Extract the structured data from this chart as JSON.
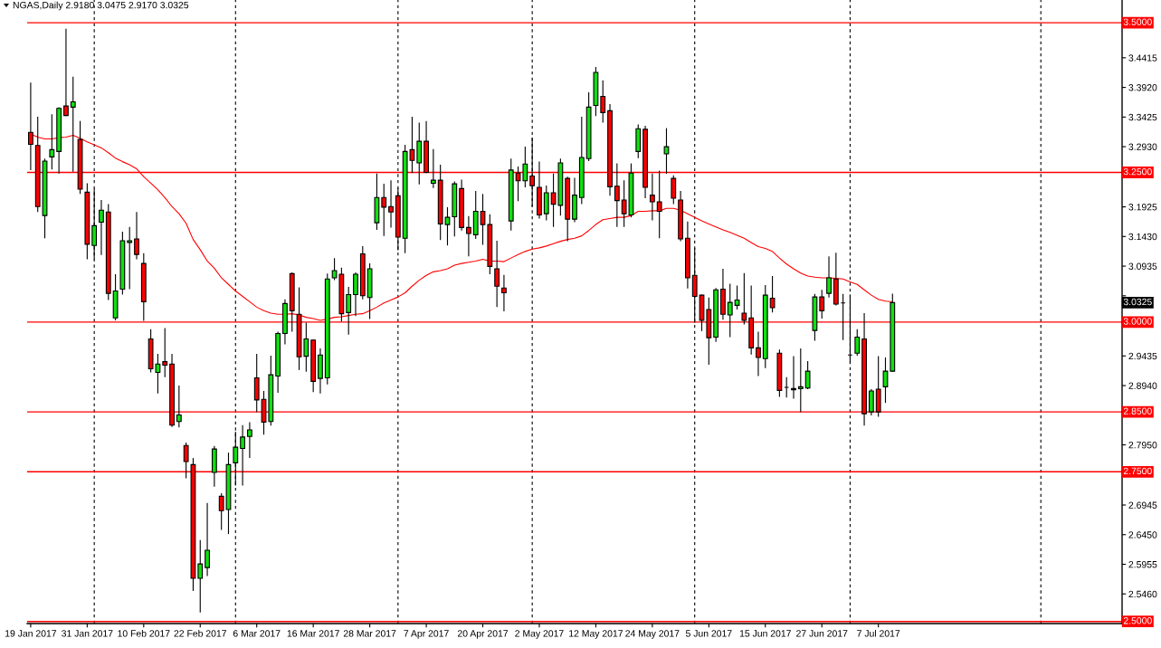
{
  "chart_data": {
    "type": "candlestick",
    "title": "NGAS,Daily 2.9180 3.0475 2.9170 3.0325",
    "categories": [
      "19 Jan 2017",
      null,
      null,
      null,
      null,
      null,
      null,
      null,
      "31 Jan 2017",
      null,
      null,
      null,
      null,
      null,
      null,
      null,
      "10 Feb 2017",
      null,
      null,
      null,
      null,
      null,
      null,
      null,
      "22 Feb 2017",
      null,
      null,
      null,
      null,
      null,
      null,
      null,
      "6 Mar 2017",
      null,
      null,
      null,
      null,
      null,
      null,
      null,
      "16 Mar 2017",
      null,
      null,
      null,
      null,
      null,
      null,
      null,
      "28 Mar 2017",
      null,
      null,
      null,
      null,
      null,
      null,
      null,
      "7 Apr 2017",
      null,
      null,
      null,
      null,
      null,
      null,
      null,
      "20 Apr 2017",
      null,
      null,
      null,
      null,
      null,
      null,
      null,
      "2 May 2017",
      null,
      null,
      null,
      null,
      null,
      null,
      null,
      "12 May 2017",
      null,
      null,
      null,
      null,
      null,
      null,
      null,
      "24 May 2017",
      null,
      null,
      null,
      null,
      null,
      null,
      null,
      "5 Jun 2017",
      null,
      null,
      null,
      null,
      null,
      null,
      null,
      "15 Jun 2017",
      null,
      null,
      null,
      null,
      null,
      null,
      null,
      "27 Jun 2017",
      null,
      null,
      null,
      null,
      null,
      null,
      null,
      "7 Jul 2017",
      null,
      null,
      null,
      null,
      null,
      null,
      null,
      null,
      null,
      null,
      null,
      null,
      null,
      null,
      null,
      null,
      null,
      null,
      null,
      null,
      null,
      null,
      null,
      null,
      null,
      null,
      null,
      null,
      null,
      null,
      null,
      null,
      null,
      null
    ],
    "ohlc": [
      [
        3.317,
        3.4,
        3.254,
        3.297
      ],
      [
        3.295,
        3.343,
        3.184,
        3.193
      ],
      [
        3.178,
        3.273,
        3.14,
        3.269
      ],
      [
        3.276,
        3.347,
        3.255,
        3.288
      ],
      [
        3.285,
        3.359,
        3.248,
        3.357
      ],
      [
        3.361,
        3.49,
        3.344,
        3.345
      ],
      [
        3.359,
        3.41,
        3.251,
        3.368
      ],
      [
        3.305,
        3.336,
        3.214,
        3.222
      ],
      [
        3.217,
        3.232,
        3.105,
        3.13
      ],
      [
        3.128,
        3.223,
        3.105,
        3.161
      ],
      [
        3.167,
        3.204,
        3.112,
        3.187
      ],
      [
        3.184,
        3.197,
        3.037,
        3.048
      ],
      [
        3.007,
        3.08,
        3.003,
        3.052
      ],
      [
        3.055,
        3.151,
        3.046,
        3.136
      ],
      [
        3.133,
        3.159,
        3.055,
        3.136
      ],
      [
        3.139,
        3.184,
        3.105,
        3.113
      ],
      [
        3.098,
        3.115,
        3.002,
        3.034
      ],
      [
        2.972,
        2.988,
        2.916,
        2.922
      ],
      [
        2.916,
        2.947,
        2.881,
        2.93
      ],
      [
        2.934,
        2.99,
        2.908,
        2.928
      ],
      [
        2.93,
        2.947,
        2.825,
        2.828
      ],
      [
        2.834,
        2.894,
        2.824,
        2.845
      ],
      [
        2.794,
        2.799,
        2.739,
        2.767
      ],
      [
        2.762,
        2.773,
        2.551,
        2.572
      ],
      [
        2.572,
        2.636,
        2.515,
        2.596
      ],
      [
        2.59,
        2.698,
        2.576,
        2.619
      ],
      [
        2.749,
        2.793,
        2.725,
        2.788
      ],
      [
        2.709,
        2.714,
        2.653,
        2.685
      ],
      [
        2.687,
        2.782,
        2.646,
        2.762
      ],
      [
        2.765,
        2.817,
        2.727,
        2.791
      ],
      [
        2.789,
        2.828,
        2.727,
        2.808
      ],
      [
        2.809,
        2.833,
        2.773,
        2.82
      ],
      [
        2.907,
        2.947,
        2.85,
        2.87
      ],
      [
        2.871,
        2.885,
        2.812,
        2.833
      ],
      [
        2.834,
        2.944,
        2.827,
        2.912
      ],
      [
        2.91,
        2.984,
        2.882,
        2.981
      ],
      [
        2.981,
        3.038,
        2.963,
        3.031
      ],
      [
        3.081,
        3.083,
        2.984,
        3.019
      ],
      [
        3.013,
        3.058,
        2.92,
        2.942
      ],
      [
        2.943,
        2.999,
        2.917,
        2.972
      ],
      [
        2.97,
        2.971,
        2.883,
        2.901
      ],
      [
        2.906,
        2.956,
        2.881,
        2.945
      ],
      [
        2.907,
        3.081,
        2.896,
        3.072
      ],
      [
        3.074,
        3.107,
        3.07,
        3.086
      ],
      [
        3.08,
        3.091,
        3.001,
        3.014
      ],
      [
        3.016,
        3.059,
        2.979,
        3.046
      ],
      [
        3.046,
        3.083,
        3.01,
        3.08
      ],
      [
        3.114,
        3.127,
        3.038,
        3.044
      ],
      [
        3.041,
        3.098,
        3.005,
        3.089
      ],
      [
        3.166,
        3.248,
        3.154,
        3.208
      ],
      [
        3.208,
        3.231,
        3.144,
        3.192
      ],
      [
        3.193,
        3.237,
        3.158,
        3.184
      ],
      [
        3.211,
        3.224,
        3.12,
        3.142
      ],
      [
        3.14,
        3.296,
        3.115,
        3.285
      ],
      [
        3.288,
        3.343,
        3.249,
        3.27
      ],
      [
        3.266,
        3.333,
        3.23,
        3.302
      ],
      [
        3.302,
        3.336,
        3.249,
        3.25
      ],
      [
        3.232,
        3.289,
        3.224,
        3.237
      ],
      [
        3.237,
        3.263,
        3.137,
        3.164
      ],
      [
        3.163,
        3.192,
        3.128,
        3.175
      ],
      [
        3.176,
        3.235,
        3.143,
        3.231
      ],
      [
        3.223,
        3.238,
        3.153,
        3.158
      ],
      [
        3.158,
        3.177,
        3.11,
        3.148
      ],
      [
        3.146,
        3.219,
        3.139,
        3.185
      ],
      [
        3.185,
        3.214,
        3.129,
        3.163
      ],
      [
        3.163,
        3.18,
        3.08,
        3.093
      ],
      [
        3.089,
        3.136,
        3.025,
        3.06
      ],
      [
        3.057,
        3.079,
        3.018,
        3.049
      ],
      [
        3.169,
        3.273,
        3.153,
        3.254
      ],
      [
        3.249,
        3.26,
        3.202,
        3.236
      ],
      [
        3.236,
        3.293,
        3.225,
        3.264
      ],
      [
        3.244,
        3.308,
        3.193,
        3.228
      ],
      [
        3.225,
        3.268,
        3.173,
        3.179
      ],
      [
        3.181,
        3.228,
        3.17,
        3.216
      ],
      [
        3.216,
        3.248,
        3.159,
        3.197
      ],
      [
        3.195,
        3.273,
        3.178,
        3.266
      ],
      [
        3.24,
        3.243,
        3.135,
        3.172
      ],
      [
        3.172,
        3.241,
        3.167,
        3.212
      ],
      [
        3.208,
        3.343,
        3.197,
        3.275
      ],
      [
        3.273,
        3.384,
        3.269,
        3.359
      ],
      [
        3.362,
        3.426,
        3.344,
        3.417
      ],
      [
        3.377,
        3.404,
        3.333,
        3.35
      ],
      [
        3.353,
        3.364,
        3.211,
        3.226
      ],
      [
        3.227,
        3.265,
        3.159,
        3.203
      ],
      [
        3.204,
        3.237,
        3.159,
        3.181
      ],
      [
        3.179,
        3.265,
        3.175,
        3.249
      ],
      [
        3.285,
        3.33,
        3.274,
        3.323
      ],
      [
        3.322,
        3.328,
        3.207,
        3.225
      ],
      [
        3.212,
        3.248,
        3.17,
        3.201
      ],
      [
        3.201,
        3.253,
        3.14,
        3.185
      ],
      [
        3.281,
        3.324,
        3.248,
        3.293
      ],
      [
        3.24,
        3.245,
        3.197,
        3.207
      ],
      [
        3.204,
        3.219,
        3.135,
        3.139
      ],
      [
        3.14,
        3.168,
        3.056,
        3.074
      ],
      [
        3.078,
        3.124,
        2.999,
        3.043
      ],
      [
        3.045,
        3.046,
        2.985,
        3.003
      ],
      [
        3.021,
        3.041,
        2.929,
        2.974
      ],
      [
        2.975,
        3.057,
        2.967,
        3.054
      ],
      [
        3.055,
        3.089,
        3.004,
        3.013
      ],
      [
        3.012,
        3.064,
        2.975,
        3.033
      ],
      [
        3.028,
        3.061,
        3.021,
        3.037
      ],
      [
        3.015,
        3.082,
        2.996,
        3.003
      ],
      [
        3.007,
        3.061,
        2.946,
        2.957
      ],
      [
        2.957,
        2.984,
        2.91,
        2.941
      ],
      [
        2.939,
        3.062,
        2.923,
        3.045
      ],
      [
        3.04,
        3.077,
        3.016,
        3.024
      ],
      [
        2.948,
        2.954,
        2.875,
        2.886
      ],
      [
        2.891,
        2.908,
        2.874,
        2.891
      ],
      [
        2.889,
        2.943,
        2.872,
        2.887
      ],
      [
        2.889,
        2.956,
        2.85,
        2.892
      ],
      [
        2.89,
        2.935,
        2.888,
        2.918
      ],
      [
        2.986,
        3.047,
        2.969,
        3.042
      ],
      [
        3.042,
        3.054,
        3.006,
        3.019
      ],
      [
        3.048,
        3.11,
        3.041,
        3.074
      ],
      [
        3.072,
        3.116,
        3.028,
        3.03
      ],
      [
        3.032,
        3.047,
        2.97,
        3.032
      ],
      [
        2.945,
        3.046,
        2.931,
        2.945
      ],
      [
        2.948,
        2.988,
        2.944,
        2.975
      ],
      [
        2.972,
        3.015,
        2.827,
        2.847
      ],
      [
        2.85,
        2.888,
        2.844,
        2.885
      ],
      [
        2.888,
        2.943,
        2.842,
        2.85
      ],
      [
        2.892,
        2.941,
        2.865,
        2.918
      ],
      [
        2.918,
        3.0475,
        2.917,
        3.0325
      ],
      null,
      null,
      null,
      null,
      null,
      null,
      null,
      null,
      null,
      null,
      null,
      null,
      null,
      null,
      null,
      null,
      null,
      null,
      null,
      null,
      null,
      null,
      null,
      null,
      null,
      null,
      null,
      null,
      null,
      null,
      null,
      null
    ],
    "colors": [
      "#ff0000",
      "#ff0000",
      "#10e010",
      "#10e010",
      "#10e010",
      "#ff0000",
      "#10e010",
      "#ff0000",
      "#ff0000",
      "#10e010",
      "#10e010",
      "#ff0000",
      "#10e010",
      "#10e010",
      "#10e010",
      "#ff0000",
      "#ff0000",
      "#ff0000",
      "#10e010",
      "#ff0000",
      "#ff0000",
      "#10e010",
      "#ff0000",
      "#ff0000",
      "#10e010",
      "#10e010",
      "#10e010",
      "#ff0000",
      "#10e010",
      "#10e010",
      "#10e010",
      "#10e010",
      "#ff0000",
      "#ff0000",
      "#10e010",
      "#10e010",
      "#10e010",
      "#ff0000",
      "#ff0000",
      "#10e010",
      "#ff0000",
      "#10e010",
      "#10e010",
      "#10e010",
      "#ff0000",
      "#10e010",
      "#10e010",
      "#ff0000",
      "#10e010",
      "#10e010",
      "#ff0000",
      "#ff0000",
      "#ff0000",
      "#10e010",
      "#ff0000",
      "#10e010",
      "#ff0000",
      "#10e010",
      "#ff0000",
      "#10e010",
      "#10e010",
      "#ff0000",
      "#ff0000",
      "#10e010",
      "#ff0000",
      "#ff0000",
      "#ff0000",
      "#ff0000",
      "#10e010",
      "#ff0000",
      "#10e010",
      "#ff0000",
      "#ff0000",
      "#10e010",
      "#ff0000",
      "#10e010",
      "#ff0000",
      "#10e010",
      "#10e010",
      "#10e010",
      "#10e010",
      "#ff0000",
      "#ff0000",
      "#ff0000",
      "#ff0000",
      "#10e010",
      "#10e010",
      "#ff0000",
      "#ff0000",
      "#ff0000",
      "#10e010",
      "#ff0000",
      "#ff0000",
      "#ff0000",
      "#ff0000",
      "#ff0000",
      "#ff0000",
      "#10e010",
      "#ff0000",
      "#10e010",
      "#10e010",
      "#ff0000",
      "#ff0000",
      "#ff0000",
      "#10e010",
      "#ff0000",
      "#ff0000",
      "#000000",
      "#ff0000",
      "#10e010",
      "#10e010",
      "#10e010",
      "#ff0000",
      "#10e010",
      "#ff0000",
      "#000000",
      "#000000",
      "#10e010",
      "#ff0000",
      "#10e010",
      "#ff0000",
      "#10e010",
      "#10e010",
      null,
      null,
      null,
      null,
      null,
      null,
      null,
      null,
      null,
      null,
      null,
      null,
      null,
      null,
      null,
      null,
      null,
      null,
      null,
      null,
      null,
      null,
      null,
      null,
      null,
      null,
      null,
      null,
      null,
      null,
      null,
      null
    ],
    "series": [
      {
        "type": "line",
        "color": "#ff0000",
        "values": [
          3.314,
          3.309,
          3.306,
          3.306,
          3.308,
          3.309,
          3.312,
          3.307,
          3.301,
          3.296,
          3.291,
          3.283,
          3.274,
          3.268,
          3.263,
          3.256,
          3.243,
          3.232,
          3.221,
          3.208,
          3.193,
          3.181,
          3.165,
          3.138,
          3.121,
          3.102,
          3.09,
          3.074,
          3.063,
          3.052,
          3.043,
          3.034,
          3.025,
          3.019,
          3.015,
          3.013,
          3.013,
          3.014,
          3.012,
          3.008,
          3.006,
          3.003,
          3.005,
          3.008,
          3.009,
          3.011,
          3.013,
          3.014,
          3.019,
          3.025,
          3.032,
          3.037,
          3.042,
          3.049,
          3.06,
          3.07,
          3.078,
          3.084,
          3.086,
          3.089,
          3.095,
          3.098,
          3.1,
          3.102,
          3.105,
          3.102,
          3.102,
          3.101,
          3.107,
          3.113,
          3.118,
          3.122,
          3.124,
          3.127,
          3.131,
          3.135,
          3.138,
          3.14,
          3.144,
          3.153,
          3.163,
          3.171,
          3.173,
          3.175,
          3.175,
          3.178,
          3.185,
          3.185,
          3.186,
          3.186,
          3.19,
          3.19,
          3.187,
          3.181,
          3.175,
          3.169,
          3.164,
          3.159,
          3.154,
          3.15,
          3.145,
          3.14,
          3.133,
          3.126,
          3.123,
          3.118,
          3.107,
          3.097,
          3.089,
          3.082,
          3.077,
          3.075,
          3.074,
          3.074,
          3.073,
          3.072,
          3.067,
          3.063,
          3.054,
          3.045,
          3.038,
          3.035,
          3.034,
          null,
          null,
          null,
          null,
          null,
          null,
          null,
          null,
          null,
          null,
          null,
          null,
          null,
          null,
          null,
          null,
          null,
          null,
          null,
          null,
          null,
          null,
          null,
          null,
          null,
          null,
          null,
          null,
          null,
          null,
          null,
          null
        ]
      }
    ],
    "ylim": [
      2.4965,
      3.538
    ],
    "yticks": [
      3.4415,
      {
        "value": 3.392,
        "label": "3.3920"
      },
      3.3425,
      {
        "value": 3.293,
        "label": "3.2930"
      },
      3.1925,
      {
        "value": 3.143,
        "label": "3.1430"
      },
      3.0935,
      {
        "value": 3.044,
        "label": null
      },
      2.9435,
      {
        "value": 2.894,
        "label": "2.8940"
      },
      {
        "value": 2.795,
        "label": "2.7950"
      },
      2.6945,
      {
        "value": 2.645,
        "label": "2.6450"
      },
      2.5955,
      {
        "value": 2.546,
        "label": "2.5460"
      }
    ],
    "ref_lines": [
      {
        "axis": "y",
        "value": 3.5,
        "label": "3.5000",
        "color": "#ff0000"
      },
      {
        "axis": "y",
        "value": 3.25,
        "label": "3.2500",
        "color": "#ff0000"
      },
      {
        "axis": "y",
        "value": 3.0,
        "label": "3.0000",
        "color": "#ff0000"
      },
      {
        "axis": "y",
        "value": 2.85,
        "label": "2.8500",
        "color": "#ff0000"
      },
      {
        "axis": "y",
        "value": 2.75,
        "label": "2.7500",
        "color": "#ff0000"
      },
      {
        "axis": "y",
        "value": 2.5,
        "label": "2.5000",
        "color": "#ff0000"
      }
    ],
    "annotations": [
      {
        "text": "3.0325",
        "y": 3.0325
      }
    ]
  }
}
